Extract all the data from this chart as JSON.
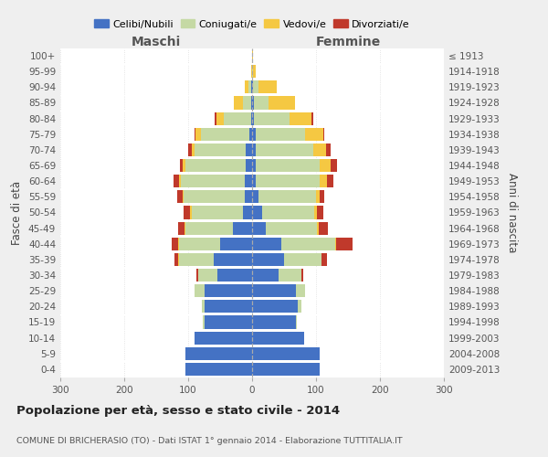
{
  "age_groups": [
    "0-4",
    "5-9",
    "10-14",
    "15-19",
    "20-24",
    "25-29",
    "30-34",
    "35-39",
    "40-44",
    "45-49",
    "50-54",
    "55-59",
    "60-64",
    "65-69",
    "70-74",
    "75-79",
    "80-84",
    "85-89",
    "90-94",
    "95-99",
    "100+"
  ],
  "birth_years": [
    "2009-2013",
    "2004-2008",
    "1999-2003",
    "1994-1998",
    "1989-1993",
    "1984-1988",
    "1979-1983",
    "1974-1978",
    "1969-1973",
    "1964-1968",
    "1959-1963",
    "1954-1958",
    "1949-1953",
    "1944-1948",
    "1939-1943",
    "1934-1938",
    "1929-1933",
    "1924-1928",
    "1919-1923",
    "1914-1918",
    "≤ 1913"
  ],
  "colors": {
    "celibe": "#4472C4",
    "coniugato": "#C5D9A4",
    "vedovo": "#F5C842",
    "divorziato": "#C0392B"
  },
  "maschi": {
    "celibe": [
      105,
      105,
      90,
      75,
      75,
      75,
      55,
      60,
      50,
      30,
      15,
      12,
      12,
      10,
      10,
      5,
      2,
      2,
      1,
      0,
      0
    ],
    "coniugato": [
      0,
      0,
      0,
      2,
      3,
      15,
      30,
      55,
      65,
      75,
      80,
      95,
      100,
      95,
      80,
      75,
      42,
      12,
      5,
      0,
      0
    ],
    "vedovo": [
      0,
      0,
      0,
      0,
      0,
      0,
      0,
      1,
      1,
      1,
      2,
      2,
      3,
      3,
      5,
      8,
      12,
      15,
      6,
      1,
      0
    ],
    "divorziato": [
      0,
      0,
      0,
      0,
      0,
      0,
      2,
      5,
      10,
      10,
      10,
      8,
      8,
      5,
      5,
      2,
      2,
      0,
      0,
      0,
      0
    ]
  },
  "femmine": {
    "nubile": [
      105,
      105,
      82,
      68,
      72,
      68,
      42,
      50,
      45,
      22,
      15,
      10,
      5,
      5,
      5,
      5,
      3,
      3,
      2,
      0,
      0
    ],
    "coniugata": [
      0,
      0,
      0,
      2,
      5,
      15,
      35,
      58,
      85,
      80,
      82,
      90,
      100,
      100,
      90,
      78,
      55,
      22,
      8,
      2,
      0
    ],
    "vedova": [
      0,
      0,
      0,
      0,
      0,
      0,
      0,
      1,
      2,
      2,
      4,
      5,
      12,
      18,
      20,
      28,
      35,
      42,
      28,
      3,
      1
    ],
    "divorziata": [
      0,
      0,
      0,
      0,
      0,
      0,
      3,
      8,
      25,
      15,
      10,
      8,
      10,
      10,
      8,
      2,
      2,
      0,
      0,
      0,
      0
    ]
  },
  "xlim": 300,
  "xticks": [
    -300,
    -200,
    -100,
    0,
    100,
    200,
    300
  ],
  "title": "Popolazione per età, sesso e stato civile - 2014",
  "subtitle": "COMUNE DI BRICHERASIO (TO) - Dati ISTAT 1° gennaio 2014 - Elaborazione TUTTITALIA.IT",
  "label_maschi": "Maschi",
  "label_femmine": "Femmine",
  "ylabel_left": "Fasce di età",
  "ylabel_right": "Anni di nascita",
  "legend_labels": [
    "Celibi/Nubili",
    "Coniugati/e",
    "Vedovi/e",
    "Divorziati/e"
  ],
  "background_color": "#efefef",
  "plot_bg": "#ffffff"
}
